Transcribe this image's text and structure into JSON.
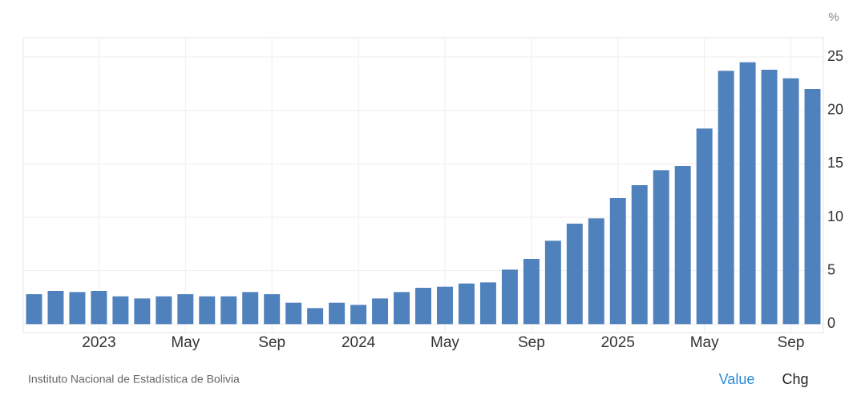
{
  "chart_data": {
    "type": "bar",
    "unit": "%",
    "categories": [
      null,
      null,
      null,
      "2023",
      null,
      null,
      null,
      "May",
      null,
      null,
      null,
      "Sep",
      null,
      null,
      null,
      "2024",
      null,
      null,
      null,
      "May",
      null,
      null,
      null,
      "Sep",
      null,
      null,
      null,
      "2025",
      null,
      null,
      null,
      "May",
      null,
      null,
      null,
      "Sep",
      null
    ],
    "values": [
      2.8,
      3.1,
      3.0,
      3.1,
      2.6,
      2.4,
      2.6,
      2.8,
      2.6,
      2.6,
      3.0,
      2.8,
      2.0,
      1.5,
      2.0,
      1.8,
      2.4,
      3.0,
      3.4,
      3.5,
      3.8,
      3.9,
      5.1,
      6.1,
      7.8,
      9.4,
      9.9,
      11.8,
      13.0,
      14.4,
      14.8,
      18.3,
      23.7,
      24.5,
      23.8,
      23.0,
      22.0
    ],
    "color": "#4f81bd",
    "ylim": [
      -0.8,
      26.8
    ],
    "yticks": [
      0,
      5,
      10,
      15,
      20,
      25
    ],
    "grid": true
  },
  "footer": {
    "source": "Instituto Nacional de Estadística de Bolivia",
    "buttons": [
      "Value",
      "Chg"
    ]
  }
}
